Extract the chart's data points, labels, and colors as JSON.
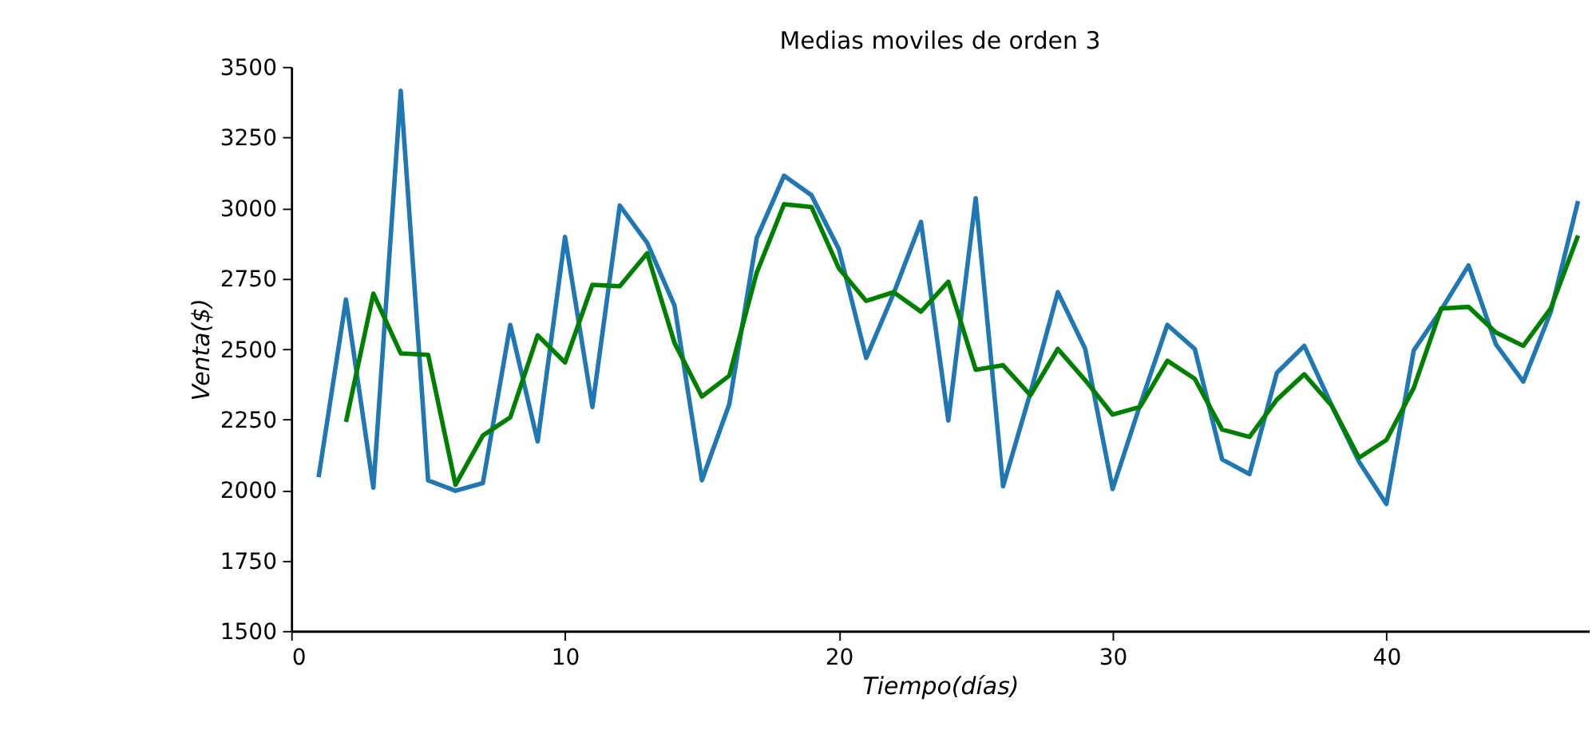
{
  "chart_data": {
    "type": "line",
    "title": "Medias moviles de orden 3",
    "xlabel": "Tiempo(días)",
    "ylabel": "Venta($)",
    "xlim": [
      0,
      47.4
    ],
    "xticks": [
      0,
      10,
      20,
      30,
      40
    ],
    "ylim": [
      1500,
      3500
    ],
    "yticks": [
      1500,
      1750,
      2000,
      2250,
      2500,
      2750,
      3000,
      3250,
      3500
    ],
    "grid": false,
    "series": [
      {
        "color": "#1f77b4",
        "x": [
          1,
          2,
          3,
          4,
          5,
          6,
          7,
          8,
          9,
          10,
          11,
          12,
          13,
          14,
          15,
          16,
          17,
          18,
          19,
          20,
          21,
          22,
          23,
          24,
          25,
          26,
          27,
          28,
          29,
          30,
          31,
          32,
          33,
          34,
          35,
          36,
          37,
          38,
          39,
          40,
          41,
          42,
          43,
          44,
          45,
          46,
          47
        ],
        "values": [
          2045,
          2675,
          2008,
          3415,
          2034,
          1997,
          2024,
          2585,
          2172,
          2897,
          2294,
          3008,
          2876,
          2653,
          2034,
          2304,
          2892,
          3114,
          3045,
          2854,
          2468,
          2696,
          2950,
          2246,
          3034,
          2013,
          2345,
          2701,
          2500,
          2003,
          2300,
          2585,
          2500,
          2108,
          2056,
          2415,
          2511,
          2300,
          2100,
          1950,
          2495,
          2638,
          2796,
          2516,
          2384,
          2630,
          3024
        ]
      },
      {
        "color": "#008000",
        "x": [
          2,
          3,
          4,
          5,
          6,
          7,
          8,
          9,
          10,
          11,
          12,
          13,
          14,
          15,
          16,
          17,
          18,
          19,
          20,
          21,
          22,
          23,
          24,
          25,
          26,
          27,
          28,
          29,
          30,
          31,
          32,
          33,
          34,
          35,
          36,
          37,
          38,
          39,
          40,
          41,
          42,
          43,
          44,
          45,
          46,
          47
        ],
        "values": [
          2241,
          2696,
          2484,
          2479,
          2018,
          2193,
          2257,
          2548,
          2452,
          2727,
          2722,
          2839,
          2521,
          2331,
          2405,
          2770,
          3013,
          3003,
          2786,
          2670,
          2701,
          2632,
          2738,
          2426,
          2442,
          2336,
          2500,
          2389,
          2267,
          2294,
          2458,
          2394,
          2214,
          2188,
          2320,
          2410,
          2299,
          2114,
          2177,
          2362,
          2643,
          2649,
          2558,
          2511,
          2643,
          2902
        ]
      }
    ]
  }
}
